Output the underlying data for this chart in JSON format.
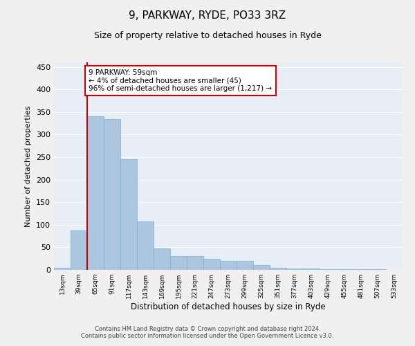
{
  "title": "9, PARKWAY, RYDE, PO33 3RZ",
  "subtitle": "Size of property relative to detached houses in Ryde",
  "xlabel": "Distribution of detached houses by size in Ryde",
  "ylabel": "Number of detached properties",
  "categories": [
    "13sqm",
    "39sqm",
    "65sqm",
    "91sqm",
    "117sqm",
    "143sqm",
    "169sqm",
    "195sqm",
    "221sqm",
    "247sqm",
    "273sqm",
    "299sqm",
    "325sqm",
    "351sqm",
    "377sqm",
    "403sqm",
    "429sqm",
    "455sqm",
    "481sqm",
    "507sqm",
    "533sqm"
  ],
  "values": [
    5,
    88,
    340,
    335,
    245,
    108,
    48,
    30,
    30,
    25,
    20,
    20,
    10,
    5,
    3,
    3,
    2,
    1,
    1,
    1,
    0
  ],
  "bar_color": "#adc6e0",
  "bar_edge_color": "#7aaecf",
  "annotation_text": "9 PARKWAY: 59sqm\n← 4% of detached houses are smaller (45)\n96% of semi-detached houses are larger (1,217) →",
  "annotation_box_color": "#ffffff",
  "annotation_box_edge_color": "#cc0000",
  "annotation_line_color": "#cc0000",
  "ylim": [
    0,
    460
  ],
  "yticks": [
    0,
    50,
    100,
    150,
    200,
    250,
    300,
    350,
    400,
    450
  ],
  "background_color": "#e8eef5",
  "grid_color": "#ffffff",
  "fig_facecolor": "#f0f0f0",
  "footer_line1": "Contains HM Land Registry data © Crown copyright and database right 2024.",
  "footer_line2": "Contains public sector information licensed under the Open Government Licence v3.0.",
  "title_fontsize": 11,
  "subtitle_fontsize": 9,
  "annotation_fontsize": 7.5
}
